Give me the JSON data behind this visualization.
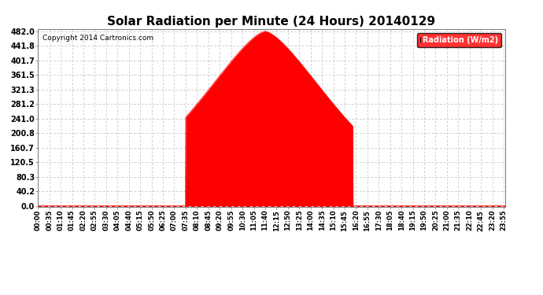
{
  "title": "Solar Radiation per Minute (24 Hours) 20140129",
  "copyright_text": "Copyright 2014 Cartronics.com",
  "legend_label": "Radiation (W/m2)",
  "legend_bg": "#ff0000",
  "legend_text_color": "#ffffff",
  "yticks": [
    0.0,
    40.2,
    80.3,
    120.5,
    160.7,
    200.8,
    241.0,
    281.2,
    321.3,
    361.5,
    401.7,
    441.8,
    482.0
  ],
  "ymax": 482.0,
  "fill_color": "#ff0000",
  "line_color": "#ff0000",
  "background_color": "#ffffff",
  "grid_color": "#bbbbbb",
  "title_fontsize": 11,
  "peak_minute": 700,
  "total_minutes": 1440,
  "sunrise_minute": 455,
  "sunset_minute": 970,
  "sigma": 200
}
